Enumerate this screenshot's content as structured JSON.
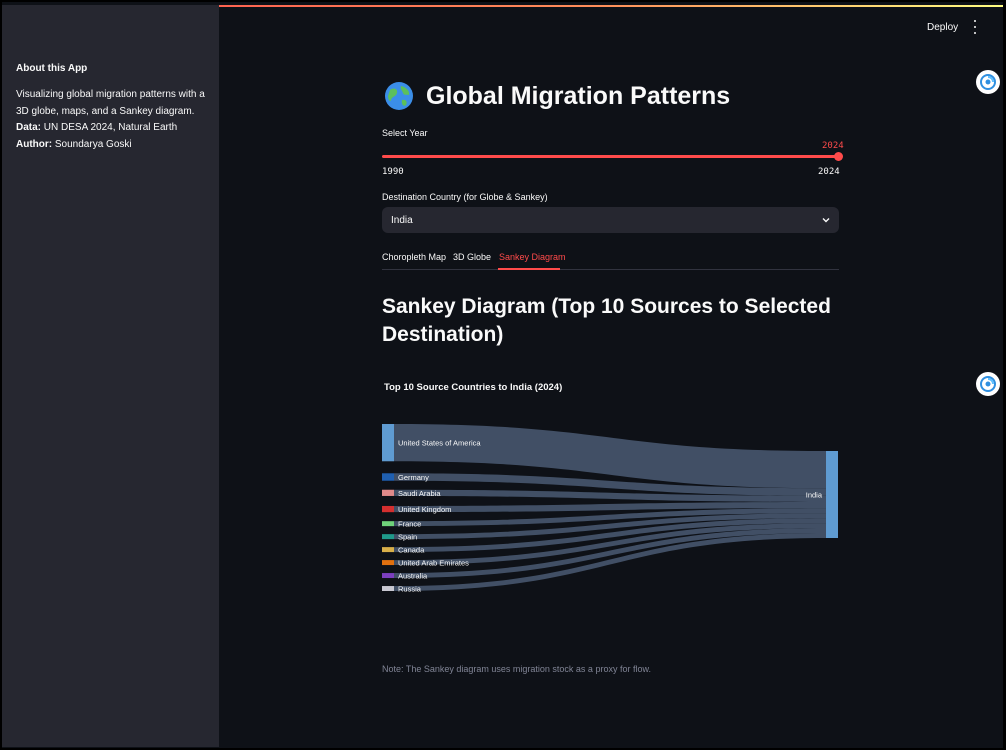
{
  "sidebar": {
    "title": "About this App",
    "description": "Visualizing global migration patterns with a 3D globe, maps, and a Sankey diagram.",
    "data_label": "Data:",
    "data_value": " UN DESA 2024, Natural Earth",
    "author_label": "Author:",
    "author_value": " Soundarya Goski"
  },
  "header": {
    "deploy_label": "Deploy",
    "menu_icon": "kebab-menu-icon"
  },
  "main": {
    "title": "Global Migration Patterns",
    "title_icon": "globe-emoji-icon",
    "year_slider": {
      "label": "Select Year",
      "value": "2024",
      "min": "1990",
      "max": "2024",
      "fraction": 1.0
    },
    "destination": {
      "label": "Destination Country (for Globe & Sankey)",
      "value": "India"
    },
    "tabs": [
      {
        "label": "Choropleth Map",
        "active": false
      },
      {
        "label": "3D Globe",
        "active": false
      },
      {
        "label": "Sankey Diagram",
        "active": true
      }
    ],
    "section_title": "Sankey Diagram (Top 10 Sources to Selected Destination)",
    "note": "Note: The Sankey diagram uses migration stock as a proxy for flow."
  },
  "colors": {
    "accent": "#ff4b4b",
    "background": "#0e1117",
    "sidebar": "#262730",
    "link": "#4a5b73",
    "node_usa": "#5f9bd1",
    "node_india": "#5f9bd1"
  },
  "chart_data": {
    "type": "sankey",
    "title": "Top 10 Source Countries to India (2024)",
    "target": "India",
    "sources": [
      {
        "name": "United States of America",
        "color": "#5f9bd1",
        "value": 30
      },
      {
        "name": "Germany",
        "color": "#1f5fb0",
        "value": 6
      },
      {
        "name": "Saudi Arabia",
        "color": "#e08a8a",
        "value": 5
      },
      {
        "name": "United Kingdom",
        "color": "#d42f2f",
        "value": 5
      },
      {
        "name": "France",
        "color": "#6fd27a",
        "value": 4
      },
      {
        "name": "Spain",
        "color": "#1f9a8a",
        "value": 4
      },
      {
        "name": "Canada",
        "color": "#d9b04a",
        "value": 4
      },
      {
        "name": "United Arab Emirates",
        "color": "#e0700f",
        "value": 4
      },
      {
        "name": "Australia",
        "color": "#7c3fbf",
        "value": 4
      },
      {
        "name": "Russia",
        "color": "#c8c8d2",
        "value": 4
      }
    ]
  }
}
